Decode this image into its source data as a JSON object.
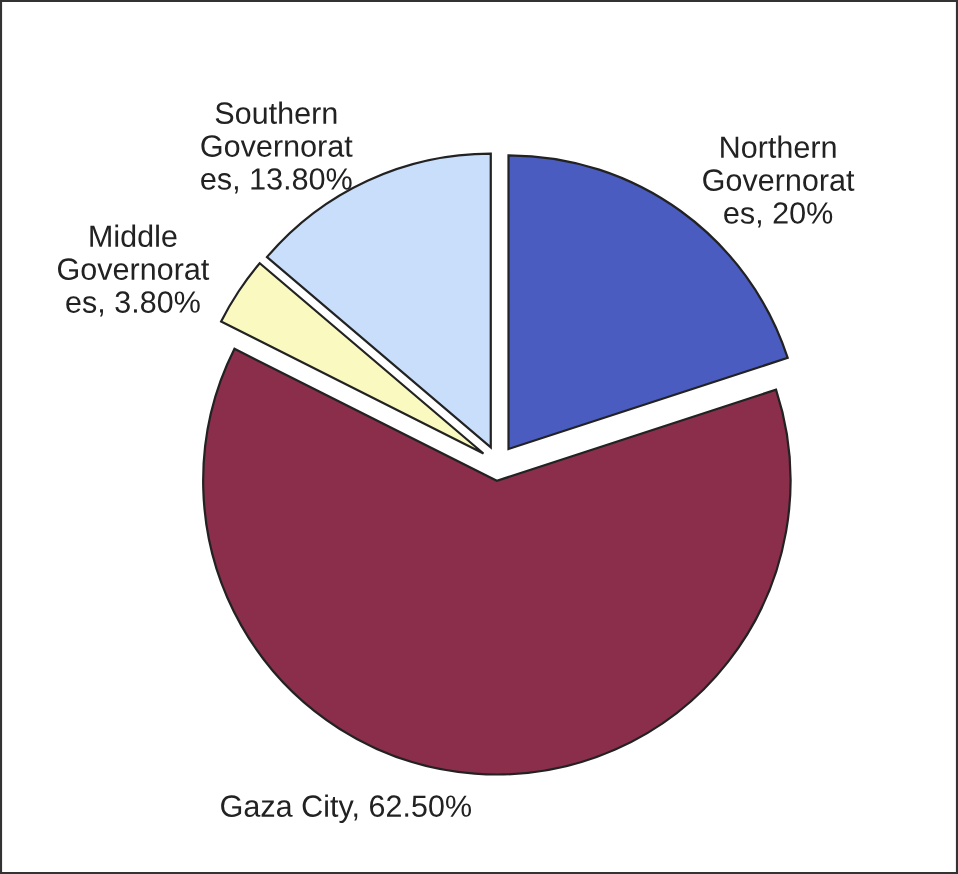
{
  "chart_data": {
    "type": "pie",
    "categories": [
      "Northern\nGovernorat\nes",
      "Gaza City",
      "Middle\nGovernorat\nes",
      "Southern\nGovernorat\nes"
    ],
    "values": [
      20,
      62.5,
      3.8,
      13.8
    ],
    "value_labels": [
      "20%",
      "62.50%",
      "3.80%",
      "13.80%"
    ],
    "colors": [
      "#4a5cc0",
      "#8a2e4c",
      "#fafac0",
      "#c8defa"
    ],
    "legend": false
  }
}
